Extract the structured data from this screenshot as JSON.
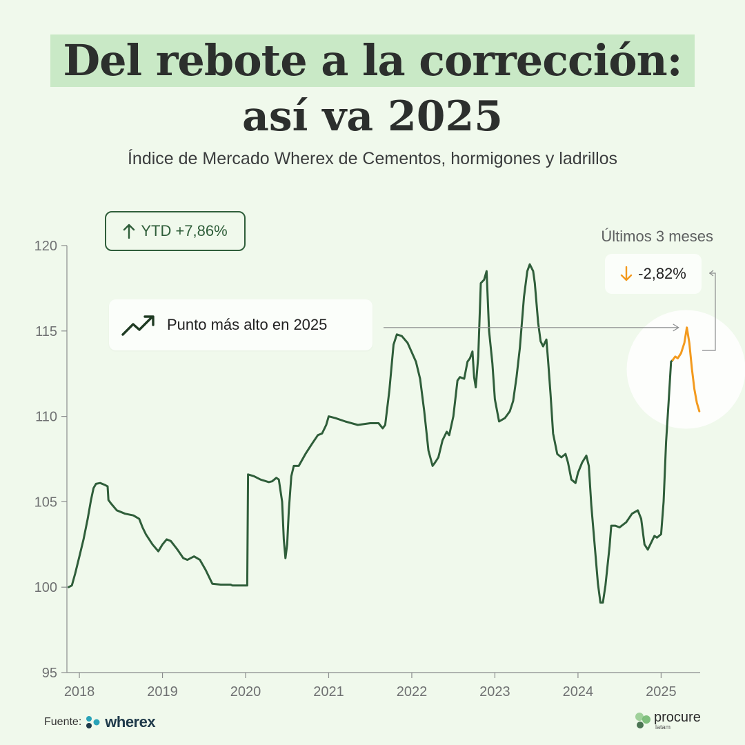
{
  "title_line1": "Del rebote a la corrección:",
  "title_line2": "así va 2025",
  "subtitle": "Índice de Mercado Wherex de Cementos, hormigones y ladrillos",
  "ytd_label": "YTD +7,86%",
  "peak_label": "Punto más alto en 2025",
  "last3_label": "Últimos 3 meses",
  "last3_value": "-2,82%",
  "footer": {
    "source_label": "Fuente:",
    "source_brand": "wherex",
    "brand": "procure",
    "brand_sub": "latam"
  },
  "colors": {
    "background": "#f0f9ec",
    "line": "#2f5e3a",
    "highlight": "#f39a1e",
    "title_band": "#c9e9c6"
  },
  "icons": {
    "ytd": "arrow-up-icon",
    "peak": "trending-up-icon",
    "last3": "arrow-down-icon"
  },
  "chart_data": {
    "type": "line",
    "title": "Del rebote a la corrección: así va 2025",
    "subtitle": "Índice de Mercado Wherex de Cementos, hormigones y ladrillos",
    "xlabel": "",
    "ylabel": "",
    "xlim": [
      2017.85,
      2025.47
    ],
    "ylim": [
      95,
      120
    ],
    "x_ticks": [
      2018,
      2019,
      2020,
      2021,
      2022,
      2023,
      2024,
      2025
    ],
    "y_ticks": [
      95,
      100,
      105,
      110,
      115,
      120
    ],
    "grid": false,
    "series": [
      {
        "highlighted": false,
        "points": [
          [
            2017.87,
            100.0
          ],
          [
            2017.91,
            100.1
          ],
          [
            2017.95,
            100.8
          ],
          [
            2018.0,
            101.8
          ],
          [
            2018.05,
            102.8
          ],
          [
            2018.1,
            104.0
          ],
          [
            2018.14,
            105.1
          ],
          [
            2018.17,
            105.8
          ],
          [
            2018.2,
            106.05
          ],
          [
            2018.25,
            106.1
          ],
          [
            2018.3,
            106.0
          ],
          [
            2018.34,
            105.9
          ],
          [
            2018.35,
            105.1
          ],
          [
            2018.38,
            104.9
          ],
          [
            2018.45,
            104.5
          ],
          [
            2018.55,
            104.3
          ],
          [
            2018.65,
            104.2
          ],
          [
            2018.72,
            104.0
          ],
          [
            2018.76,
            103.5
          ],
          [
            2018.8,
            103.1
          ],
          [
            2018.88,
            102.5
          ],
          [
            2018.95,
            102.1
          ],
          [
            2019.0,
            102.5
          ],
          [
            2019.05,
            102.8
          ],
          [
            2019.1,
            102.7
          ],
          [
            2019.18,
            102.2
          ],
          [
            2019.25,
            101.7
          ],
          [
            2019.3,
            101.6
          ],
          [
            2019.38,
            101.8
          ],
          [
            2019.45,
            101.6
          ],
          [
            2019.52,
            101.0
          ],
          [
            2019.6,
            100.2
          ],
          [
            2019.7,
            100.15
          ],
          [
            2019.82,
            100.15
          ],
          [
            2019.84,
            100.1
          ],
          [
            2020.0,
            100.1
          ],
          [
            2020.02,
            100.1
          ],
          [
            2020.03,
            106.6
          ],
          [
            2020.1,
            106.5
          ],
          [
            2020.18,
            106.3
          ],
          [
            2020.28,
            106.15
          ],
          [
            2020.32,
            106.2
          ],
          [
            2020.37,
            106.4
          ],
          [
            2020.4,
            106.3
          ],
          [
            2020.44,
            105.0
          ],
          [
            2020.46,
            102.8
          ],
          [
            2020.48,
            101.7
          ],
          [
            2020.5,
            102.5
          ],
          [
            2020.52,
            104.5
          ],
          [
            2020.55,
            106.5
          ],
          [
            2020.58,
            107.1
          ],
          [
            2020.64,
            107.1
          ],
          [
            2020.72,
            107.8
          ],
          [
            2020.8,
            108.4
          ],
          [
            2020.87,
            108.9
          ],
          [
            2020.92,
            109.0
          ],
          [
            2020.97,
            109.5
          ],
          [
            2021.0,
            110.0
          ],
          [
            2021.08,
            109.9
          ],
          [
            2021.2,
            109.7
          ],
          [
            2021.35,
            109.5
          ],
          [
            2021.5,
            109.6
          ],
          [
            2021.6,
            109.6
          ],
          [
            2021.65,
            109.3
          ],
          [
            2021.68,
            109.5
          ],
          [
            2021.73,
            111.5
          ],
          [
            2021.78,
            114.2
          ],
          [
            2021.82,
            114.8
          ],
          [
            2021.88,
            114.7
          ],
          [
            2021.95,
            114.3
          ],
          [
            2022.05,
            113.2
          ],
          [
            2022.1,
            112.2
          ],
          [
            2022.15,
            110.3
          ],
          [
            2022.2,
            108.0
          ],
          [
            2022.25,
            107.1
          ],
          [
            2022.28,
            107.3
          ],
          [
            2022.32,
            107.6
          ],
          [
            2022.37,
            108.6
          ],
          [
            2022.42,
            109.1
          ],
          [
            2022.45,
            108.9
          ],
          [
            2022.5,
            110.0
          ],
          [
            2022.55,
            112.1
          ],
          [
            2022.58,
            112.3
          ],
          [
            2022.63,
            112.2
          ],
          [
            2022.67,
            113.2
          ],
          [
            2022.7,
            113.4
          ],
          [
            2022.73,
            113.8
          ],
          [
            2022.75,
            112.3
          ],
          [
            2022.77,
            111.7
          ],
          [
            2022.8,
            113.5
          ],
          [
            2022.83,
            117.8
          ],
          [
            2022.87,
            118.0
          ],
          [
            2022.9,
            118.5
          ],
          [
            2022.93,
            115.0
          ],
          [
            2022.97,
            113.1
          ],
          [
            2023.0,
            111.0
          ],
          [
            2023.05,
            109.7
          ],
          [
            2023.12,
            109.9
          ],
          [
            2023.18,
            110.3
          ],
          [
            2023.22,
            110.9
          ],
          [
            2023.26,
            112.3
          ],
          [
            2023.3,
            114.0
          ],
          [
            2023.35,
            117.0
          ],
          [
            2023.39,
            118.5
          ],
          [
            2023.42,
            118.9
          ],
          [
            2023.46,
            118.5
          ],
          [
            2023.48,
            117.8
          ],
          [
            2023.52,
            115.5
          ],
          [
            2023.55,
            114.4
          ],
          [
            2023.58,
            114.1
          ],
          [
            2023.62,
            114.5
          ],
          [
            2023.64,
            113.3
          ],
          [
            2023.67,
            111.3
          ],
          [
            2023.7,
            109.0
          ],
          [
            2023.75,
            107.8
          ],
          [
            2023.8,
            107.6
          ],
          [
            2023.85,
            107.8
          ],
          [
            2023.88,
            107.3
          ],
          [
            2023.92,
            106.3
          ],
          [
            2023.97,
            106.1
          ],
          [
            2024.0,
            106.7
          ],
          [
            2024.05,
            107.3
          ],
          [
            2024.1,
            107.7
          ],
          [
            2024.13,
            107.1
          ],
          [
            2024.16,
            104.8
          ],
          [
            2024.2,
            102.5
          ],
          [
            2024.24,
            100.2
          ],
          [
            2024.27,
            99.1
          ],
          [
            2024.3,
            99.1
          ],
          [
            2024.33,
            100.1
          ],
          [
            2024.38,
            102.4
          ],
          [
            2024.4,
            103.6
          ],
          [
            2024.45,
            103.6
          ],
          [
            2024.5,
            103.5
          ],
          [
            2024.58,
            103.8
          ],
          [
            2024.65,
            104.3
          ],
          [
            2024.72,
            104.5
          ],
          [
            2024.76,
            104.0
          ],
          [
            2024.8,
            102.5
          ],
          [
            2024.84,
            102.2
          ],
          [
            2024.88,
            102.6
          ],
          [
            2024.92,
            103.0
          ],
          [
            2024.95,
            102.9
          ],
          [
            2025.0,
            103.1
          ],
          [
            2025.03,
            105.0
          ],
          [
            2025.06,
            108.5
          ],
          [
            2025.09,
            110.8
          ],
          [
            2025.12,
            113.2
          ],
          [
            2025.14,
            113.3
          ]
        ]
      },
      {
        "highlighted": true,
        "points": [
          [
            2025.14,
            113.3
          ],
          [
            2025.17,
            113.5
          ],
          [
            2025.2,
            113.4
          ],
          [
            2025.24,
            113.7
          ],
          [
            2025.28,
            114.3
          ],
          [
            2025.31,
            115.2
          ],
          [
            2025.34,
            114.3
          ],
          [
            2025.37,
            112.8
          ],
          [
            2025.4,
            111.6
          ],
          [
            2025.43,
            110.8
          ],
          [
            2025.46,
            110.3
          ]
        ]
      }
    ],
    "annotations": [
      {
        "text": "Punto más alto en 2025",
        "x": 2025.31,
        "y": 115.2
      },
      {
        "text": "Últimos 3 meses",
        "value": "-2,82%"
      },
      {
        "text": "YTD +7,86%"
      }
    ]
  }
}
